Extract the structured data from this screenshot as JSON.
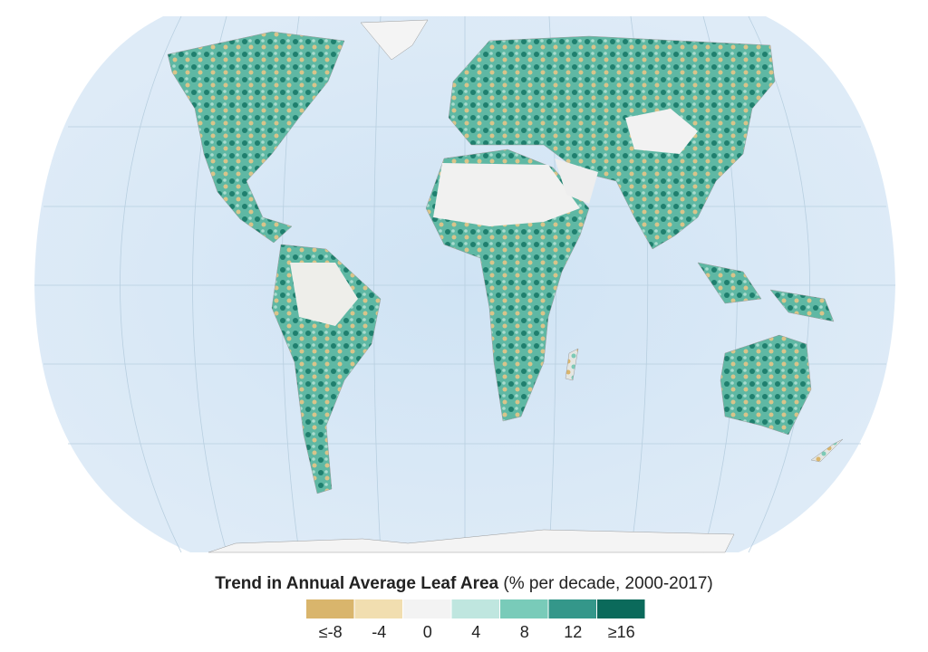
{
  "legend": {
    "title": "Trend in Annual Average Leaf Area",
    "subtitle": "(% per decade, 2000-2017)",
    "items": [
      {
        "label": "≤-8",
        "color": "#d9b56c"
      },
      {
        "label": "-4",
        "color": "#f1deb0"
      },
      {
        "label": "0",
        "color": "#f3f3f3"
      },
      {
        "label": "4",
        "color": "#bfe6df"
      },
      {
        "label": "8",
        "color": "#79cbb9"
      },
      {
        "label": "12",
        "color": "#34978a"
      },
      {
        "label": "≥16",
        "color": "#0b6a5b"
      }
    ]
  }
}
